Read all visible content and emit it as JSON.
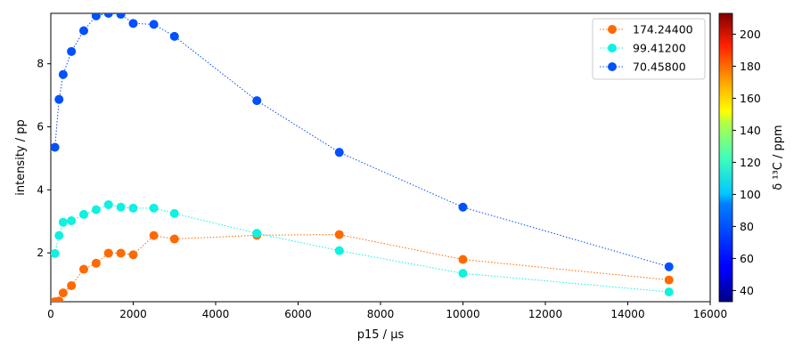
{
  "chart_data": {
    "type": "scatter",
    "xlabel": "p15 / µs",
    "ylabel": "intensity / pp",
    "xlim": [
      0,
      16000
    ],
    "ylim": [
      0.45,
      9.6
    ],
    "xticks": [
      0,
      2000,
      4000,
      6000,
      8000,
      10000,
      12000,
      14000,
      16000
    ],
    "yticks": [
      2,
      4,
      6,
      8
    ],
    "legend_position": "top-right",
    "grid": false,
    "colorbar": {
      "label": "δ ¹³C / ppm",
      "range": [
        33,
        213
      ],
      "ticks": [
        40,
        60,
        80,
        100,
        120,
        140,
        160,
        180,
        200
      ],
      "colormap": "jet"
    },
    "series": [
      {
        "name": "174.24400",
        "color": "#ff6a00",
        "x": [
          100,
          200,
          300,
          500,
          800,
          1100,
          1400,
          1700,
          2000,
          2500,
          3000,
          5000,
          7000,
          10000,
          15000
        ],
        "y": [
          0.45,
          0.47,
          0.73,
          0.96,
          1.48,
          1.67,
          1.99,
          1.99,
          1.94,
          2.55,
          2.44,
          2.56,
          2.58,
          1.79,
          1.14
        ]
      },
      {
        "name": "99.41200",
        "color": "#0ff2df",
        "x": [
          100,
          200,
          300,
          500,
          800,
          1100,
          1400,
          1700,
          2000,
          2500,
          3000,
          5000,
          7000,
          10000,
          15000
        ],
        "y": [
          1.98,
          2.55,
          2.97,
          3.02,
          3.22,
          3.37,
          3.53,
          3.45,
          3.42,
          3.42,
          3.25,
          2.62,
          2.07,
          1.35,
          0.76
        ]
      },
      {
        "name": "70.45800",
        "color": "#0050ff",
        "x": [
          100,
          200,
          300,
          500,
          800,
          1100,
          1400,
          1700,
          2000,
          2500,
          3000,
          5000,
          7000,
          10000,
          15000
        ],
        "y": [
          5.35,
          6.87,
          7.66,
          8.39,
          9.05,
          9.52,
          9.6,
          9.57,
          9.28,
          9.25,
          8.87,
          6.83,
          5.19,
          3.45,
          1.56
        ]
      }
    ]
  }
}
